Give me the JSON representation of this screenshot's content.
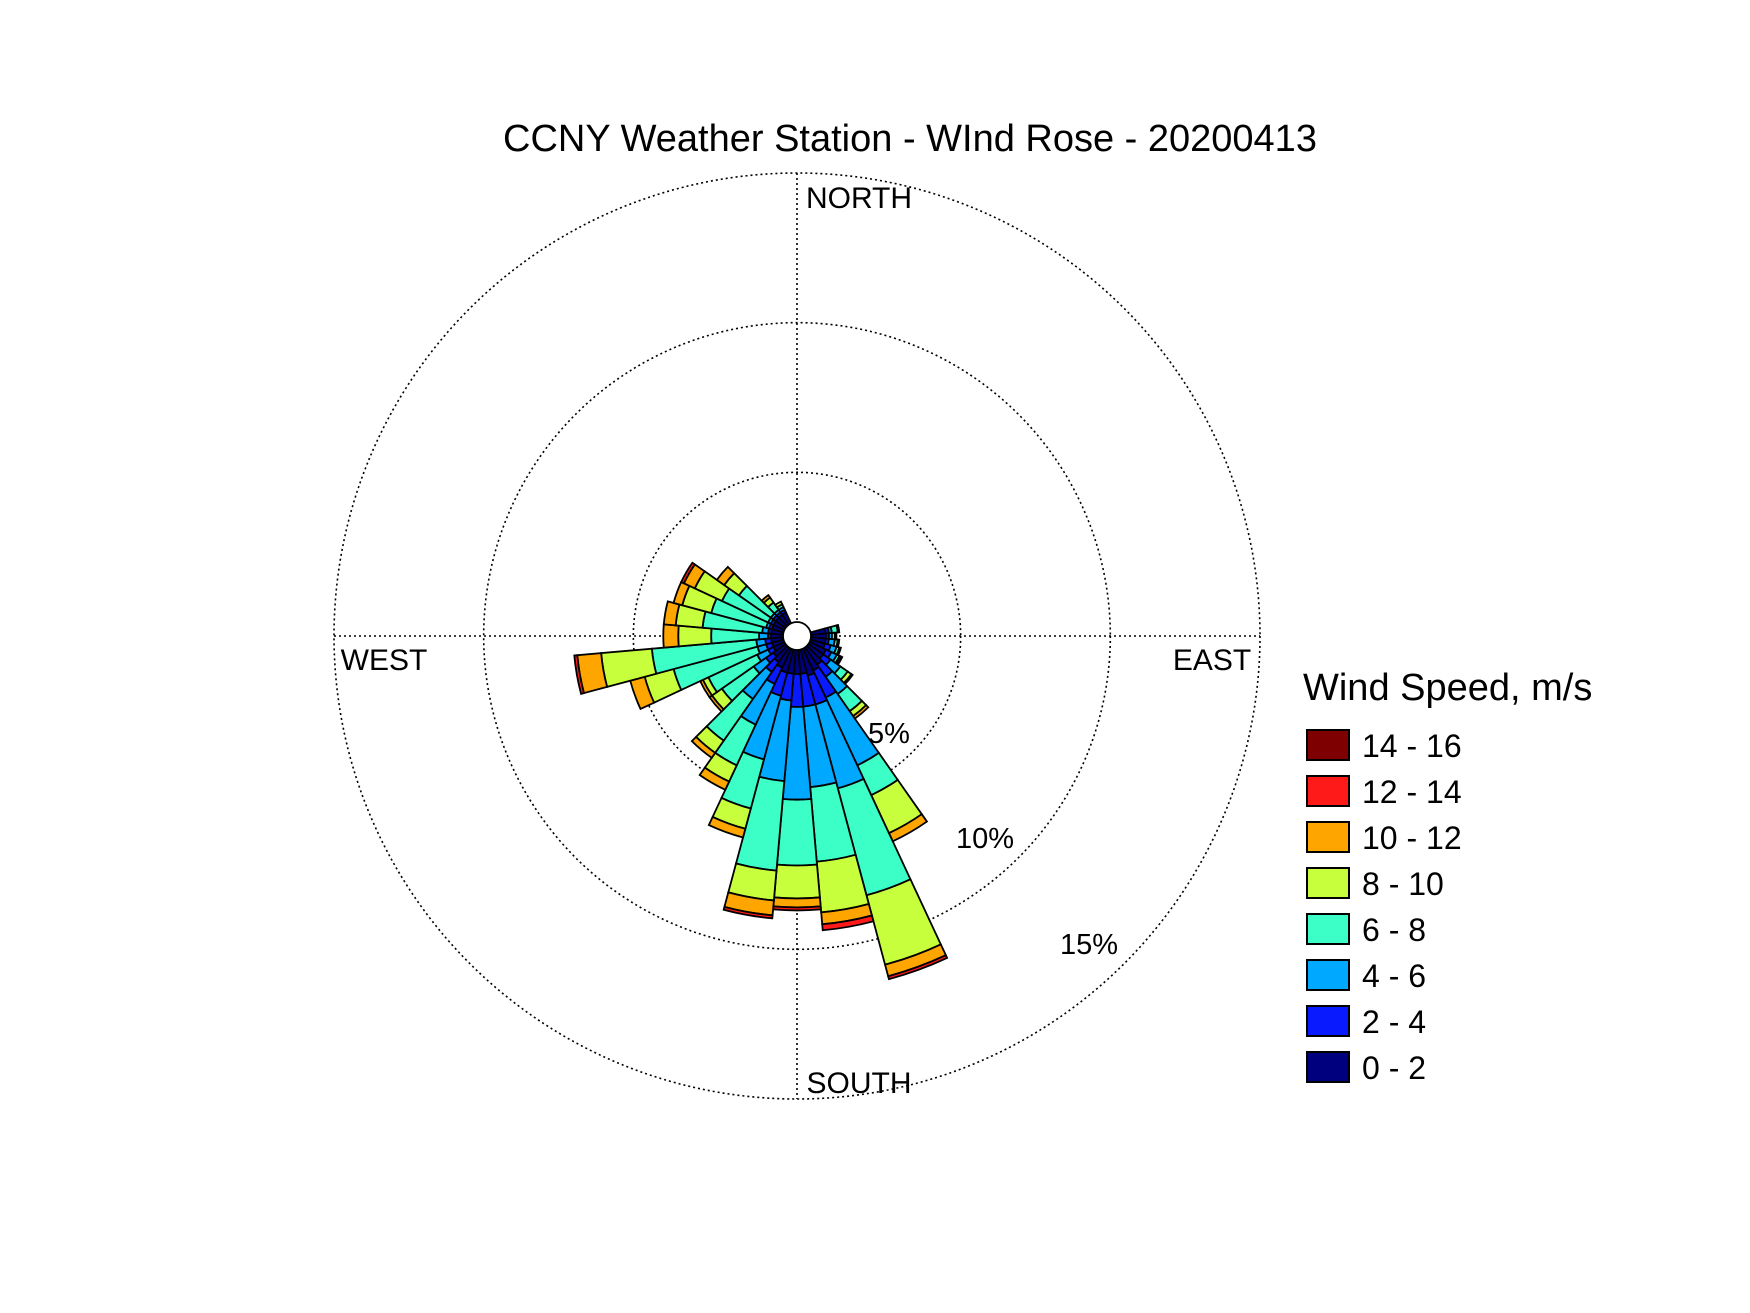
{
  "chart_data": {
    "type": "wind-rose",
    "title": "CCNY Weather Station - WInd Rose - 20200413",
    "direction_labels": [
      "NORTH",
      "EAST",
      "SOUTH",
      "WEST"
    ],
    "rings_percent": [
      5,
      10,
      15
    ],
    "ring_labels": [
      "5%",
      "10%",
      "15%"
    ],
    "rlim": [
      0,
      15
    ],
    "sector_width_deg": 10,
    "legend": {
      "title": "Wind Speed, m/s",
      "position": "right",
      "bins": [
        "14 - 16",
        "12 - 14",
        "10 - 12",
        "8 - 10",
        "6 - 8",
        "4 - 6",
        "2 - 4",
        "0 - 2"
      ],
      "colors": [
        "#7f0000",
        "#ff1a1a",
        "#ffa500",
        "#c8ff3c",
        "#3cffc8",
        "#00a8ff",
        "#0a1aff",
        "#00007f"
      ]
    },
    "speed_bins_low_to_high": [
      "0 - 2",
      "2 - 4",
      "4 - 6",
      "6 - 8",
      "8 - 10",
      "10 - 12",
      "12 - 14",
      "14 - 16"
    ],
    "sectors": [
      {
        "direction_deg": 120,
        "cumulative_percent": [
          0.6,
          0.8,
          1.0,
          1.1,
          1.15,
          1.2,
          1.2,
          1.2
        ]
      },
      {
        "direction_deg": 130,
        "cumulative_percent": [
          0.6,
          0.9,
          1.3,
          1.6,
          1.75,
          1.8,
          1.8,
          1.8
        ]
      },
      {
        "direction_deg": 140,
        "cumulative_percent": [
          0.7,
          1.2,
          1.9,
          2.6,
          2.8,
          2.9,
          2.9,
          2.9
        ]
      },
      {
        "direction_deg": 150,
        "cumulative_percent": [
          0.8,
          1.8,
          4.3,
          5.4,
          6.8,
          7.1,
          7.1,
          7.1
        ]
      },
      {
        "direction_deg": 160,
        "cumulative_percent": [
          0.9,
          1.9,
          4.8,
          8.5,
          10.9,
          11.3,
          11.4,
          11.4
        ]
      },
      {
        "direction_deg": 170,
        "cumulative_percent": [
          0.8,
          1.9,
          4.6,
          7.1,
          8.8,
          9.2,
          9.4,
          9.4
        ]
      },
      {
        "direction_deg": 180,
        "cumulative_percent": [
          0.8,
          1.9,
          5.0,
          7.2,
          8.3,
          8.6,
          8.7,
          8.7
        ]
      },
      {
        "direction_deg": 190,
        "cumulative_percent": [
          0.8,
          1.7,
          4.4,
          7.4,
          8.4,
          8.9,
          9.0,
          9.0
        ]
      },
      {
        "direction_deg": 200,
        "cumulative_percent": [
          0.8,
          1.6,
          3.8,
          5.5,
          6.2,
          6.5,
          6.5,
          6.5
        ]
      },
      {
        "direction_deg": 210,
        "cumulative_percent": [
          0.7,
          1.3,
          2.8,
          4.3,
          4.9,
          5.2,
          5.2,
          5.2
        ]
      },
      {
        "direction_deg": 220,
        "cumulative_percent": [
          0.6,
          1.0,
          2.1,
          3.8,
          4.3,
          4.5,
          4.5,
          4.5
        ]
      },
      {
        "direction_deg": 230,
        "cumulative_percent": [
          0.5,
          0.8,
          1.3,
          2.6,
          3.0,
          3.1,
          3.1,
          3.1
        ]
      },
      {
        "direction_deg": 240,
        "cumulative_percent": [
          0.4,
          0.6,
          1.0,
          2.8,
          3.0,
          3.1,
          3.1,
          3.1
        ]
      },
      {
        "direction_deg": 250,
        "cumulative_percent": [
          0.4,
          0.6,
          0.9,
          3.8,
          4.8,
          5.3,
          5.3,
          5.3
        ]
      },
      {
        "direction_deg": 260,
        "cumulative_percent": [
          0.4,
          0.6,
          0.9,
          4.4,
          6.1,
          6.9,
          7.0,
          7.0
        ]
      },
      {
        "direction_deg": 270,
        "cumulative_percent": [
          0.4,
          0.5,
          0.8,
          2.4,
          3.5,
          4.0,
          4.0,
          4.0
        ]
      },
      {
        "direction_deg": 280,
        "cumulative_percent": [
          0.4,
          0.5,
          0.7,
          2.7,
          3.6,
          4.0,
          4.0,
          4.0
        ]
      },
      {
        "direction_deg": 290,
        "cumulative_percent": [
          0.4,
          0.5,
          0.6,
          2.5,
          3.5,
          3.8,
          3.8,
          3.8
        ]
      },
      {
        "direction_deg": 300,
        "cumulative_percent": [
          0.4,
          0.5,
          0.6,
          2.3,
          3.3,
          3.7,
          3.8,
          3.8
        ]
      },
      {
        "direction_deg": 310,
        "cumulative_percent": [
          0.4,
          0.5,
          0.6,
          1.9,
          2.5,
          2.8,
          2.8,
          2.8
        ]
      },
      {
        "direction_deg": 320,
        "cumulative_percent": [
          0.4,
          0.5,
          0.6,
          0.9,
          1.1,
          1.2,
          1.2,
          1.2
        ]
      },
      {
        "direction_deg": 330,
        "cumulative_percent": [
          0.4,
          0.5,
          0.6,
          0.7,
          0.8,
          0.8,
          0.8,
          0.8
        ]
      },
      {
        "direction_deg": 110,
        "cumulative_percent": [
          0.5,
          0.7,
          0.9,
          1.0,
          1.05,
          1.05,
          1.05,
          1.05
        ]
      },
      {
        "direction_deg": 100,
        "cumulative_percent": [
          0.5,
          0.6,
          0.8,
          0.9,
          0.95,
          0.95,
          0.95,
          0.95
        ]
      },
      {
        "direction_deg": 90,
        "cumulative_percent": [
          0.5,
          0.6,
          0.7,
          0.8,
          0.85,
          0.85,
          0.85,
          0.85
        ]
      },
      {
        "direction_deg": 80,
        "cumulative_percent": [
          0.5,
          0.6,
          0.7,
          0.9,
          0.95,
          0.95,
          0.95,
          0.95
        ]
      }
    ]
  }
}
